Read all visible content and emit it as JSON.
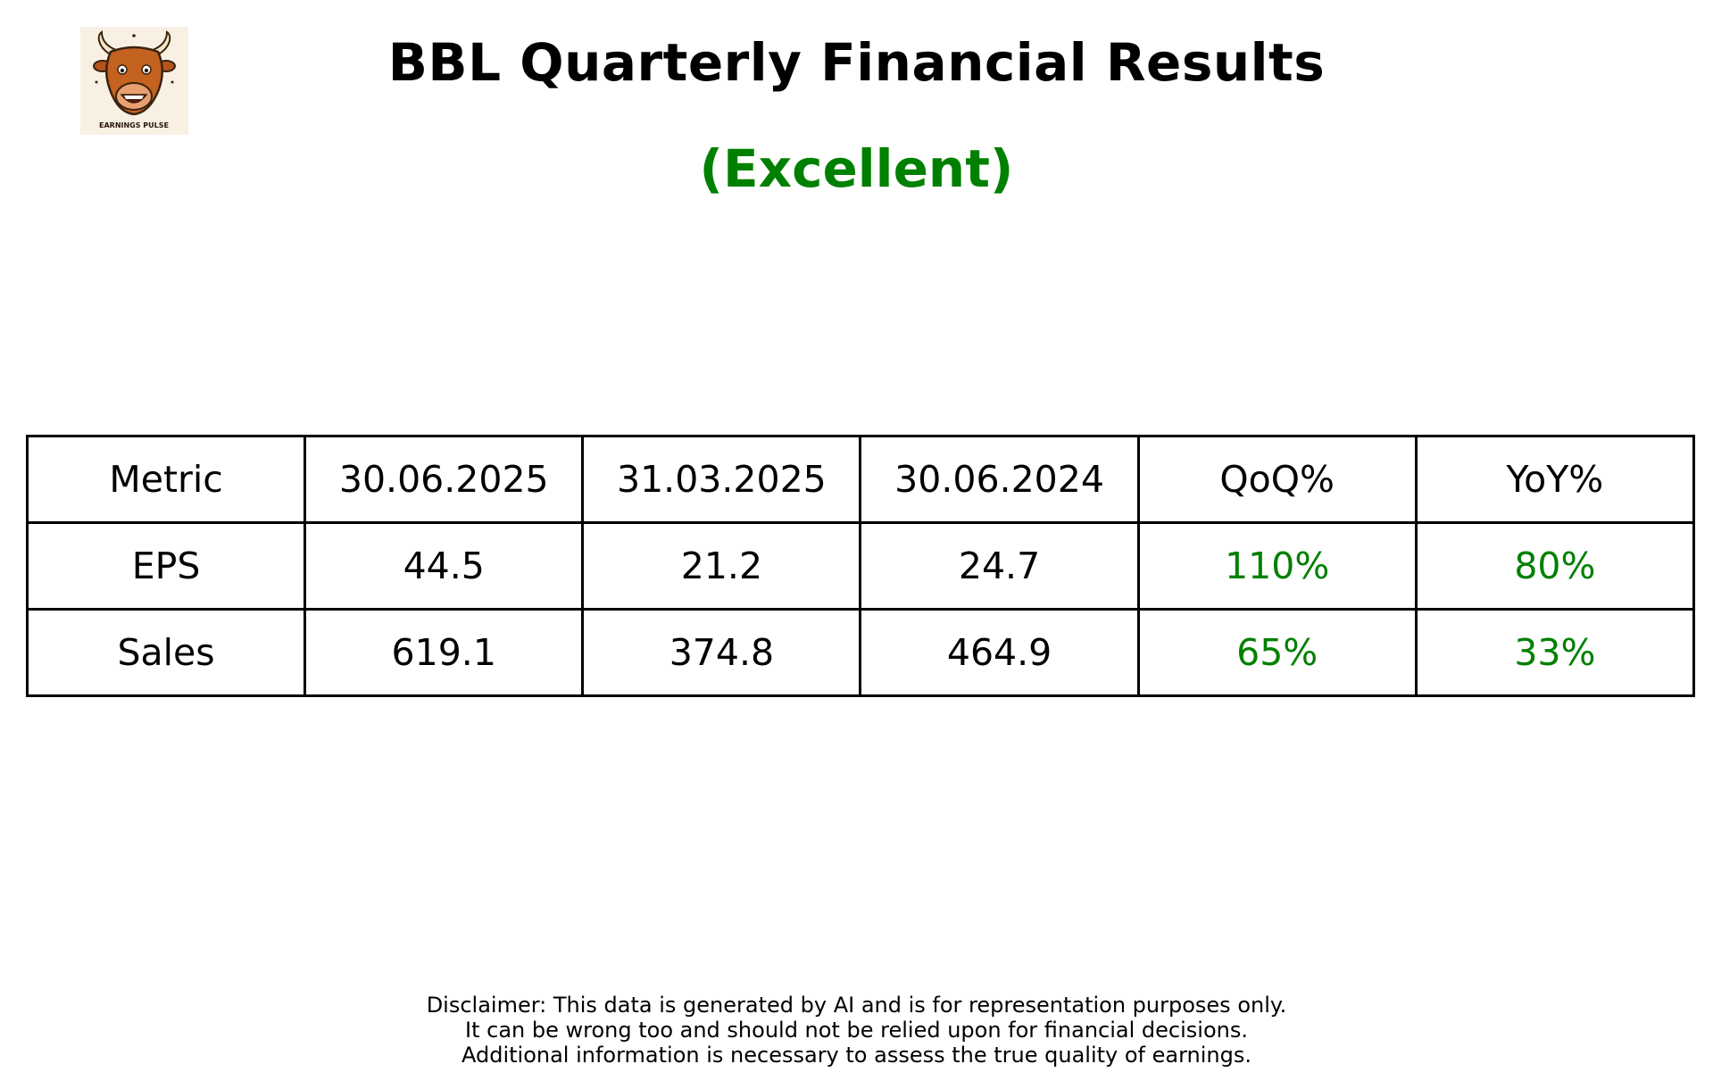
{
  "logo": {
    "label": "EARNINGS PULSE",
    "icon": "bull-head-icon"
  },
  "title": "BBL Quarterly Financial Results",
  "rating": {
    "label": "(Excellent)",
    "color": "#008000"
  },
  "chart_data": {
    "type": "table",
    "columns": [
      "Metric",
      "30.06.2025",
      "31.03.2025",
      "30.06.2024",
      "QoQ%",
      "YoY%"
    ],
    "rows": [
      {
        "metric": "EPS",
        "cells": [
          "44.5",
          "21.2",
          "24.7",
          "110%",
          "80%"
        ]
      },
      {
        "metric": "Sales",
        "cells": [
          "619.1",
          "374.8",
          "464.9",
          "65%",
          "33%"
        ]
      }
    ],
    "change_color": "#008000"
  },
  "disclaimer": {
    "lines": [
      "Disclaimer: This data is generated by AI and is for representation purposes only.",
      "It can be wrong too and should not be relied upon for financial decisions.",
      "Additional information is necessary to assess the true quality of earnings."
    ]
  }
}
